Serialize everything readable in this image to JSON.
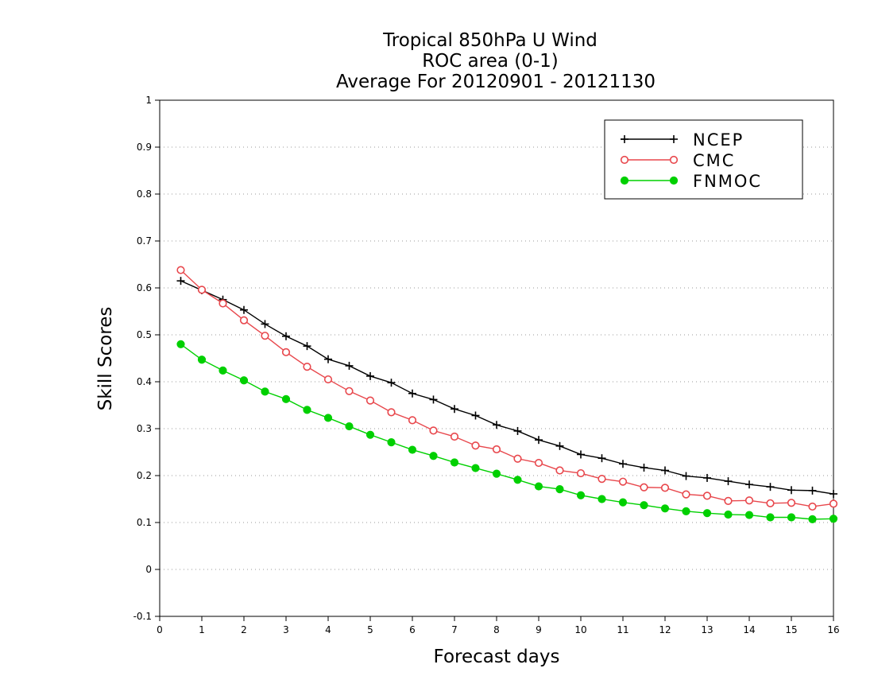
{
  "chart_data": {
    "type": "line",
    "title_lines": [
      "Tropical 850hPa U Wind",
      "ROC area (0-1)",
      "Average For 20120901 - 20121130"
    ],
    "xlabel": "Forecast days",
    "ylabel": "Skill Scores",
    "xlim": [
      0,
      16
    ],
    "ylim": [
      -0.1,
      1
    ],
    "x_ticks": [
      0,
      1,
      2,
      3,
      4,
      5,
      6,
      7,
      8,
      9,
      10,
      11,
      12,
      13,
      14,
      15,
      16
    ],
    "x_tick_labels": [
      "0",
      "1",
      "2",
      "3",
      "4",
      "5",
      "6",
      "7",
      "8",
      "9",
      "10",
      "11",
      "12",
      "13",
      "14",
      "15",
      "16"
    ],
    "y_ticks": [
      -0.1,
      0,
      0.1,
      0.2,
      0.3,
      0.4,
      0.5,
      0.6,
      0.7,
      0.8,
      0.9,
      1
    ],
    "y_tick_labels": [
      "-0.1",
      "0",
      "0.1",
      "0.2",
      "0.3",
      "0.4",
      "0.5",
      "0.6",
      "0.7",
      "0.8",
      "0.9",
      "1"
    ],
    "grid": "horizontal dotted",
    "legend_position": "top-right",
    "x": [
      0.5,
      1,
      1.5,
      2,
      2.5,
      3,
      3.5,
      4,
      4.5,
      5,
      5.5,
      6,
      6.5,
      7,
      7.5,
      8,
      8.5,
      9,
      9.5,
      10,
      10.5,
      11,
      11.5,
      12,
      12.5,
      13,
      13.5,
      14,
      14.5,
      15,
      15.5,
      16
    ],
    "series": [
      {
        "name": "NCEP",
        "color": "#000000",
        "marker": "plus",
        "values": [
          0.615,
          0.595,
          0.575,
          0.553,
          0.523,
          0.497,
          0.476,
          0.448,
          0.434,
          0.412,
          0.398,
          0.375,
          0.362,
          0.342,
          0.328,
          0.308,
          0.295,
          0.276,
          0.263,
          0.245,
          0.237,
          0.225,
          0.217,
          0.211,
          0.199,
          0.195,
          0.188,
          0.181,
          0.176,
          0.169,
          0.168,
          0.161
        ]
      },
      {
        "name": "CMC",
        "color": "#e8474c",
        "marker": "open-circle",
        "values": [
          0.638,
          0.596,
          0.567,
          0.531,
          0.498,
          0.463,
          0.432,
          0.405,
          0.38,
          0.36,
          0.335,
          0.318,
          0.296,
          0.283,
          0.264,
          0.256,
          0.236,
          0.227,
          0.211,
          0.205,
          0.193,
          0.187,
          0.175,
          0.174,
          0.16,
          0.157,
          0.146,
          0.147,
          0.141,
          0.142,
          0.134,
          0.14
        ]
      },
      {
        "name": "FNMOC",
        "color": "#00d000",
        "marker": "filled-circle",
        "values": [
          0.48,
          0.447,
          0.424,
          0.403,
          0.379,
          0.363,
          0.34,
          0.323,
          0.305,
          0.287,
          0.271,
          0.255,
          0.242,
          0.228,
          0.216,
          0.204,
          0.191,
          0.177,
          0.171,
          0.158,
          0.15,
          0.143,
          0.137,
          0.13,
          0.124,
          0.12,
          0.117,
          0.116,
          0.111,
          0.111,
          0.107,
          0.108
        ]
      }
    ]
  }
}
